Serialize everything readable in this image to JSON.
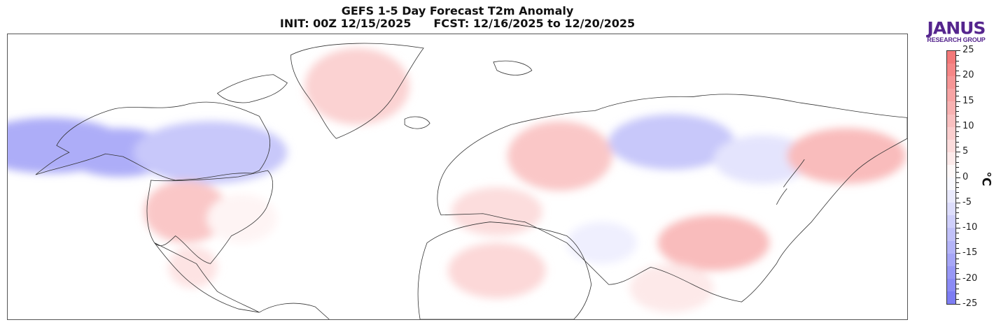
{
  "header": {
    "title_line1": "GEFS 1-5 Day Forecast T2m Anomaly",
    "init_label": "INIT: 00Z 12/15/2025",
    "fcst_label": "FCST: 12/16/2025 to 12/20/2025"
  },
  "logo": {
    "line1": "JANUS",
    "line2": "RESEARCH GROUP",
    "color": "#55258e"
  },
  "colorbar": {
    "unit": "°C",
    "min": -25,
    "max": 25,
    "step": 2.5,
    "tick_labels": [
      "25",
      "20",
      "15",
      "10",
      "5",
      "0",
      "-5",
      "-10",
      "-15",
      "-20",
      "-25"
    ],
    "tick_values": [
      25,
      20,
      15,
      10,
      5,
      0,
      -5,
      -10,
      -15,
      -20,
      -25
    ],
    "warm_color": "#f26b6b",
    "cold_color": "#6f6ff2",
    "neutral_color": "#ffffff"
  },
  "map": {
    "variable": "T2m Anomaly",
    "regions": [
      {
        "name": "alaska-western-canada",
        "anomaly": -15
      },
      {
        "name": "central-canada",
        "anomaly": -10
      },
      {
        "name": "greenland",
        "anomaly": 8
      },
      {
        "name": "western-us",
        "anomaly": 10
      },
      {
        "name": "eastern-us",
        "anomaly": 2
      },
      {
        "name": "mexico",
        "anomaly": 5
      },
      {
        "name": "scandinavia-western-russia",
        "anomaly": 10
      },
      {
        "name": "europe",
        "anomaly": 6
      },
      {
        "name": "western-siberia",
        "anomaly": -10
      },
      {
        "name": "central-siberia",
        "anomaly": -5
      },
      {
        "name": "eastern-siberia",
        "anomaly": 12
      },
      {
        "name": "tibet-china",
        "anomaly": 12
      },
      {
        "name": "sahara",
        "anomaly": 7
      },
      {
        "name": "middle-east",
        "anomaly": -3
      },
      {
        "name": "india-southeast-asia",
        "anomaly": 4
      }
    ]
  }
}
